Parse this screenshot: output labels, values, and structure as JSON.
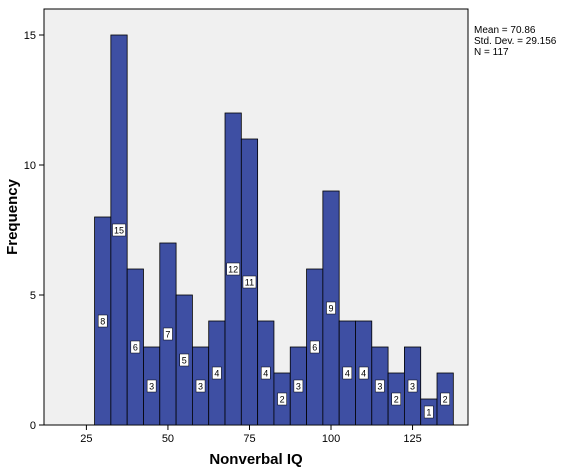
{
  "chart_data": {
    "type": "bar",
    "xlabel": "Nonverbal IQ",
    "ylabel": "Frequency",
    "xlim": [
      12,
      142
    ],
    "ylim": [
      0,
      16
    ],
    "x_ticks": [
      25,
      50,
      75,
      100,
      125
    ],
    "y_ticks": [
      0,
      5,
      10,
      15
    ],
    "bin_width": 5,
    "bins": [
      {
        "x0": 27.5,
        "value": 8
      },
      {
        "x0": 32.5,
        "value": 15
      },
      {
        "x0": 37.5,
        "value": 6
      },
      {
        "x0": 42.5,
        "value": 3
      },
      {
        "x0": 47.5,
        "value": 7
      },
      {
        "x0": 52.5,
        "value": 5
      },
      {
        "x0": 57.5,
        "value": 3
      },
      {
        "x0": 62.5,
        "value": 4
      },
      {
        "x0": 67.5,
        "value": 12
      },
      {
        "x0": 72.5,
        "value": 11
      },
      {
        "x0": 77.5,
        "value": 4
      },
      {
        "x0": 82.5,
        "value": 2
      },
      {
        "x0": 87.5,
        "value": 3
      },
      {
        "x0": 92.5,
        "value": 6
      },
      {
        "x0": 97.5,
        "value": 9
      },
      {
        "x0": 102.5,
        "value": 4
      },
      {
        "x0": 107.5,
        "value": 4
      },
      {
        "x0": 112.5,
        "value": 3
      },
      {
        "x0": 117.5,
        "value": 2
      },
      {
        "x0": 122.5,
        "value": 3
      },
      {
        "x0": 127.5,
        "value": 1
      },
      {
        "x0": 132.5,
        "value": 2
      }
    ],
    "stats": {
      "mean": "Mean = 70.86",
      "std": "Std. Dev. = 29.156",
      "n": "N = 117"
    },
    "colors": {
      "bar_fill": "#3e4fa3",
      "bar_stroke": "#000000",
      "plot_bg": "#f0f0f0"
    }
  }
}
